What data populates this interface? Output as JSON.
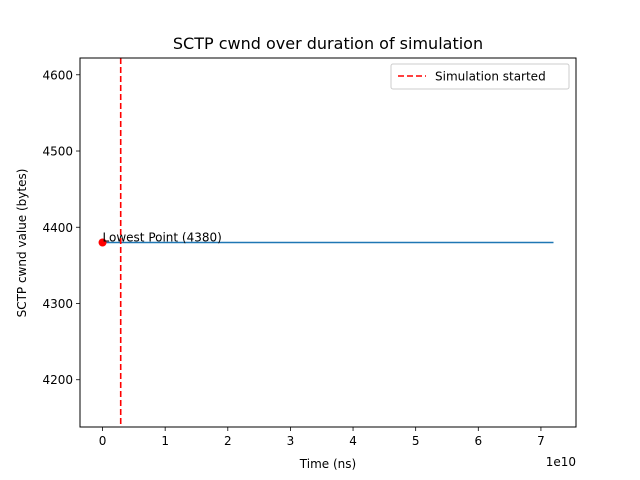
{
  "chart_data": {
    "type": "line",
    "title": "SCTP cwnd over duration of simulation",
    "xlabel": "Time (ns)",
    "ylabel": "SCTP cwnd value (bytes)",
    "x_offset_label": "1e10",
    "xlim": [
      -3600000000.0,
      75600000000.0
    ],
    "ylim": [
      4138,
      4622
    ],
    "x_ticks": [
      0,
      10000000000.0,
      20000000000.0,
      30000000000.0,
      40000000000.0,
      50000000000.0,
      60000000000.0,
      70000000000.0
    ],
    "x_tick_labels": [
      "0",
      "1",
      "2",
      "3",
      "4",
      "5",
      "6",
      "7"
    ],
    "y_ticks": [
      4200,
      4300,
      4400,
      4500,
      4600
    ],
    "y_tick_labels": [
      "4200",
      "4300",
      "4400",
      "4500",
      "4600"
    ],
    "series": [
      {
        "x": [
          0,
          72000000000.0
        ],
        "y": [
          4380,
          4380
        ],
        "color": "#1f77b4"
      }
    ],
    "vline": {
      "x": 2900000000.0,
      "label": "Simulation started",
      "color": "#ff0000",
      "style": "dashed"
    },
    "point": {
      "x": 0,
      "y": 4380,
      "label": "Lowest Point (4380)",
      "color": "#ff0000"
    },
    "legend": {
      "placement": "upper right",
      "entries": [
        "Simulation started"
      ]
    },
    "grid": false
  }
}
